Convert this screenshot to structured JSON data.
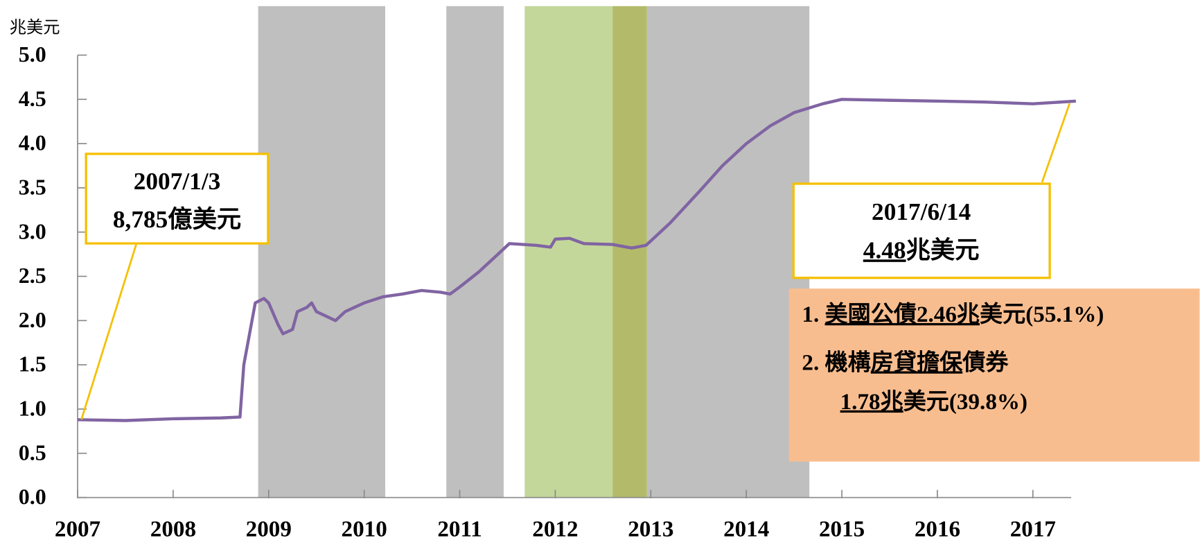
{
  "chart_data": {
    "type": "line",
    "y_axis_label": "兆美元",
    "color": "#8064a2",
    "x": [
      2007.0,
      2007.5,
      2008.0,
      2008.5,
      2008.7,
      2008.74,
      2008.8,
      2008.86,
      2008.95,
      2009.0,
      2009.1,
      2009.15,
      2009.25,
      2009.3,
      2009.4,
      2009.45,
      2009.5,
      2009.6,
      2009.7,
      2009.8,
      2010.0,
      2010.2,
      2010.4,
      2010.6,
      2010.8,
      2010.9,
      2011.0,
      2011.2,
      2011.4,
      2011.52,
      2011.8,
      2011.95,
      2012.0,
      2012.15,
      2012.3,
      2012.6,
      2012.8,
      2012.95,
      2013.0,
      2013.2,
      2013.5,
      2013.75,
      2014.0,
      2014.25,
      2014.5,
      2014.8,
      2015.0,
      2015.5,
      2016.0,
      2016.5,
      2017.0,
      2017.45
    ],
    "values": [
      0.88,
      0.87,
      0.89,
      0.9,
      0.91,
      1.5,
      1.85,
      2.2,
      2.25,
      2.2,
      1.95,
      1.85,
      1.9,
      2.1,
      2.15,
      2.2,
      2.1,
      2.05,
      2.0,
      2.1,
      2.2,
      2.27,
      2.3,
      2.34,
      2.32,
      2.3,
      2.38,
      2.55,
      2.75,
      2.87,
      2.85,
      2.83,
      2.92,
      2.93,
      2.87,
      2.86,
      2.82,
      2.85,
      2.9,
      3.1,
      3.45,
      3.75,
      4.0,
      4.2,
      4.35,
      4.45,
      4.5,
      4.49,
      4.48,
      4.47,
      4.45,
      4.48
    ],
    "xlim": [
      2007,
      2017.45
    ],
    "xticks": [
      2007,
      2008,
      2009,
      2010,
      2011,
      2012,
      2013,
      2014,
      2015,
      2016,
      2017
    ],
    "ylim": [
      0,
      5
    ],
    "yticks": [
      {
        "value": 0,
        "label": "0.0"
      },
      {
        "value": 0.5,
        "label": "0.5"
      },
      {
        "value": 1,
        "label": "1.0"
      },
      {
        "value": 1.5,
        "label": "1.5"
      },
      {
        "value": 2,
        "label": "2.0"
      },
      {
        "value": 2.5,
        "label": "2.5"
      },
      {
        "value": 3,
        "label": "3.0"
      },
      {
        "value": 3.5,
        "label": "3.5"
      },
      {
        "value": 4,
        "label": "4.0"
      },
      {
        "value": 4.5,
        "label": "4.5"
      },
      {
        "value": 5,
        "label": "5.0"
      }
    ],
    "spans": [
      {
        "start": 2008.89,
        "end": 2010.22,
        "color": "#bfbfbf"
      },
      {
        "start": 2010.86,
        "end": 2011.46,
        "color": "#bfbfbf"
      },
      {
        "start": 2012.96,
        "end": 2014.66,
        "color": "#bfbfbf"
      },
      {
        "start": 2011.68,
        "end": 2012.6,
        "color": "#c4d79b"
      },
      {
        "start": 2012.6,
        "end": 2012.96,
        "color": "#b3bb6b"
      }
    ],
    "annotations": {
      "start": [
        [
          {
            "text": "2007/1/3"
          }
        ],
        [
          {
            "text": "8,785億美元"
          }
        ]
      ],
      "end": [
        [
          {
            "text": "2017/6/14"
          }
        ],
        [
          {
            "text": "4.48",
            "underline": true
          },
          {
            "text": "兆美元"
          }
        ]
      ],
      "composition": [
        [
          {
            "text": "1. "
          },
          {
            "text": "美國公債2.46兆",
            "underline": true
          },
          {
            "text": "美元(55.1%)"
          }
        ],
        [
          {
            "text": "2. 機構"
          },
          {
            "text": "房貸擔保",
            "underline": true
          },
          {
            "text": "債券"
          }
        ],
        [
          {
            "text": "1.78兆",
            "underline": true
          },
          {
            "text": "美元(39.8%)"
          }
        ]
      ]
    }
  }
}
